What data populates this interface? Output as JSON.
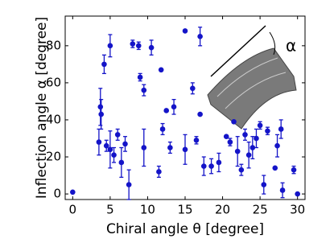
{
  "chart_data": {
    "type": "scatter",
    "x_label": "Chiral angle θ [degree]",
    "y_label": "Inflection angle α [degree]",
    "inset_label": "α",
    "color": "#1414c8",
    "x": [
      0,
      3.5,
      3.7,
      3.8,
      4.2,
      4.5,
      5,
      5,
      5.5,
      6,
      6.5,
      7,
      7.5,
      8,
      8.8,
      9,
      9.5,
      9.5,
      10.5,
      11.5,
      11.8,
      12,
      12.5,
      13,
      13.5,
      15,
      15,
      16,
      16.5,
      17,
      17,
      17.5,
      18.5,
      19.5,
      20.5,
      21,
      21.5,
      22,
      22.5,
      23,
      23.5,
      24,
      24.5,
      25,
      25.5,
      26,
      27,
      27.3,
      27.8,
      28,
      29.5,
      30
    ],
    "values": [
      1,
      28,
      47,
      43,
      70,
      26,
      80,
      24,
      21,
      32,
      17,
      27,
      5,
      81,
      80,
      63,
      56,
      25,
      79,
      12,
      67,
      35,
      45,
      25,
      47,
      88,
      24,
      57,
      29,
      85,
      43,
      15,
      15,
      17,
      31,
      28,
      39,
      23,
      13,
      32,
      21,
      25,
      30,
      37,
      5,
      34,
      14,
      26,
      35,
      2,
      13,
      0
    ],
    "errors": [
      null,
      7,
      10,
      8,
      5,
      3,
      6,
      10,
      4,
      3,
      8,
      4,
      8,
      2,
      2,
      2,
      3,
      10,
      4,
      3,
      null,
      3,
      null,
      3,
      4,
      null,
      8,
      3,
      2,
      5,
      null,
      5,
      4,
      5,
      null,
      2,
      null,
      8,
      3,
      3,
      7,
      6,
      5,
      2,
      5,
      2,
      null,
      6,
      5,
      4,
      2,
      null
    ],
    "xlim": [
      -1,
      31
    ],
    "ylim": [
      -3,
      96
    ],
    "xticks": [
      0,
      5,
      10,
      15,
      20,
      25,
      30
    ],
    "yticks": [
      0,
      20,
      40,
      60,
      80
    ]
  }
}
